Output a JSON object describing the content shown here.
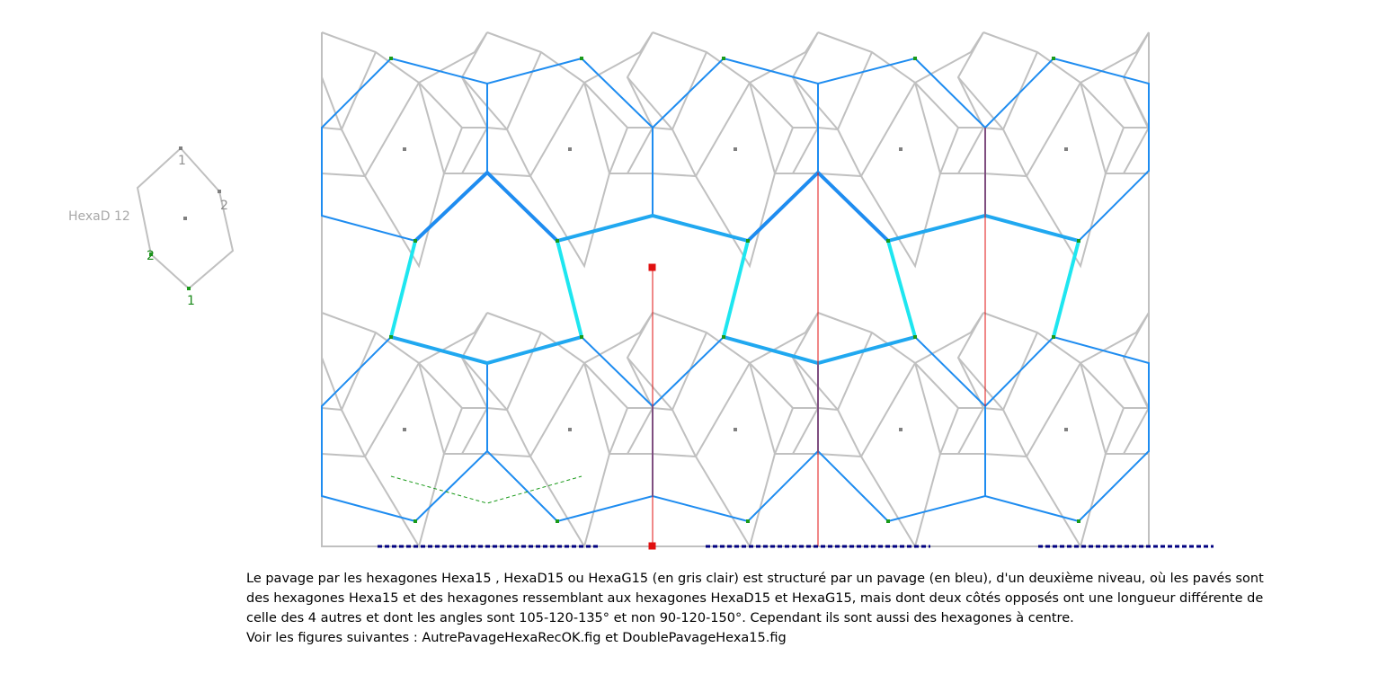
{
  "figure": {
    "name_label": "HexaD 12",
    "vertex_labels": [
      "1",
      "2",
      "2",
      "1"
    ],
    "colors": {
      "base_tiling": "#c0c0c0",
      "blue_tiling": "#1e8cf0",
      "cyan_tiling": "#1ee6f0",
      "red_lines": "#e01010",
      "green_dots": "#1a9a1a",
      "gray_centers": "#808080",
      "dashed_border": "#000080",
      "label_gray": "#a0a0a0",
      "label_green": "#1a8a1a"
    }
  },
  "caption": {
    "lines": [
      "Le pavage par les hexagones Hexa15 , HexaD15 ou HexaG15 (en gris clair) est structuré par un pavage (en bleu), d'un deuxième niveau, où les pavés sont",
      "des hexagones Hexa15 et des hexagones ressemblant aux hexagones HexaD15 et HexaG15, mais dont deux côtés opposés ont une longueur différente de",
      "celle des 4 autres et dont les angles sont 105-120-135° et non  90-120-150°. Cependant ils sont aussi des hexagones à centre.",
      "Voir les figures suivantes : AutrePavageHexaRecOK.fig et DoublePavageHexa15.fig"
    ]
  }
}
